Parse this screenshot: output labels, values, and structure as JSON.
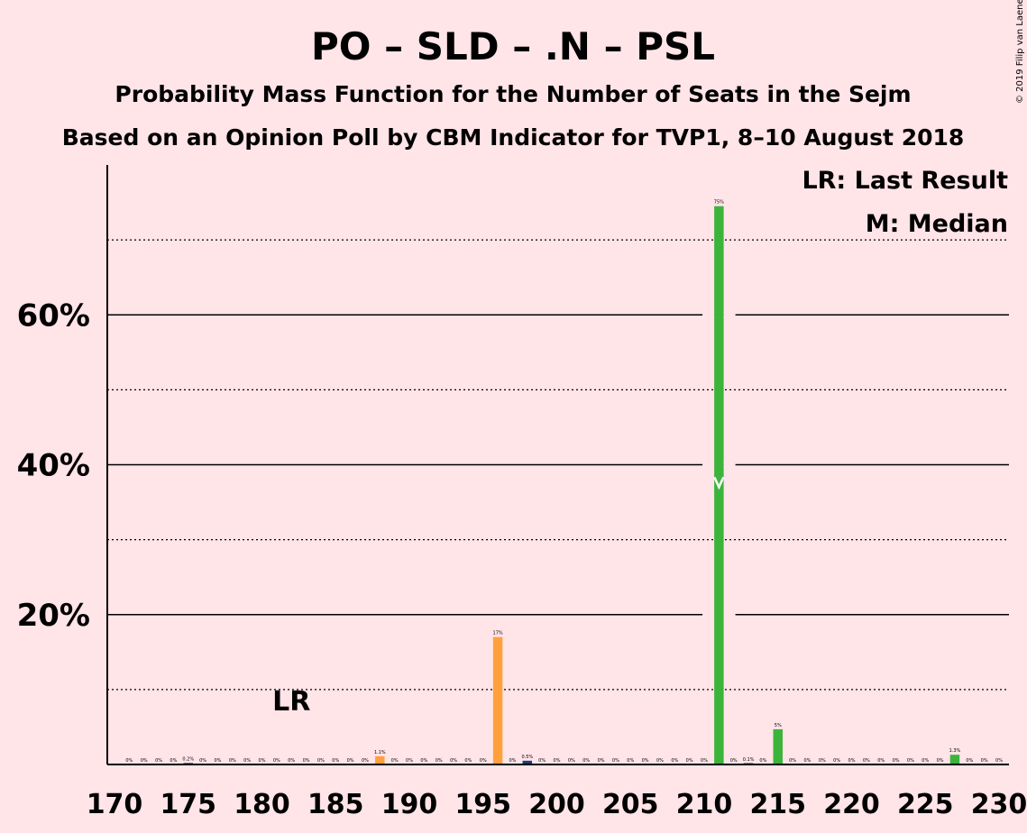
{
  "chart_data": {
    "type": "bar",
    "title": "PO – SLD – .N – PSL",
    "subtitle": "Probability Mass Function for the Number of Seats in the Sejm",
    "subtitle2": "Based on an Opinion Poll by CBM Indicator for TVP1, 8–10 August 2018",
    "copyright": "© 2019 Filip van Laenen",
    "legend": {
      "lr": "LR: Last Result",
      "m": "M: Median",
      "placement": "top-right"
    },
    "lr_marker": {
      "label": "LR",
      "seat": 182
    },
    "median_seat": 211,
    "xlim": [
      170,
      230
    ],
    "ylim": [
      0,
      80
    ],
    "x_ticks": [
      "170",
      "175",
      "180",
      "185",
      "190",
      "195",
      "200",
      "205",
      "210",
      "215",
      "220",
      "225",
      "230"
    ],
    "y_ticks": [
      {
        "value": 20,
        "label": "20%"
      },
      {
        "value": 40,
        "label": "40%"
      },
      {
        "value": 60,
        "label": "60%"
      }
    ],
    "minor_grid": [
      10,
      30,
      50,
      70
    ],
    "colors": {
      "green": "#3cb43c",
      "orange": "#ffa03c",
      "navy": "#1e3c78",
      "background": "#ffe4e8",
      "text": "#1a0a0a"
    },
    "bars": [
      {
        "seat": 171,
        "value": 0,
        "label": "0%"
      },
      {
        "seat": 172,
        "value": 0,
        "label": "0%"
      },
      {
        "seat": 173,
        "value": 0,
        "label": "0%"
      },
      {
        "seat": 174,
        "value": 0,
        "label": "0%"
      },
      {
        "seat": 175,
        "value": 0.2,
        "label": "0.2%"
      },
      {
        "seat": 176,
        "value": 0,
        "label": "0%"
      },
      {
        "seat": 177,
        "value": 0,
        "label": "0%"
      },
      {
        "seat": 178,
        "value": 0,
        "label": "0%"
      },
      {
        "seat": 179,
        "value": 0,
        "label": "0%"
      },
      {
        "seat": 180,
        "value": 0,
        "label": "0%"
      },
      {
        "seat": 181,
        "value": 0,
        "label": "0%"
      },
      {
        "seat": 182,
        "value": 0,
        "label": "0%"
      },
      {
        "seat": 183,
        "value": 0,
        "label": "0%"
      },
      {
        "seat": 184,
        "value": 0,
        "label": "0%"
      },
      {
        "seat": 185,
        "value": 0,
        "label": "0%"
      },
      {
        "seat": 186,
        "value": 0,
        "label": "0%"
      },
      {
        "seat": 187,
        "value": 0,
        "label": "0%"
      },
      {
        "seat": 188,
        "value": 1.1,
        "label": "1.1%",
        "color": "orange"
      },
      {
        "seat": 189,
        "value": 0,
        "label": "0%"
      },
      {
        "seat": 190,
        "value": 0,
        "label": "0%"
      },
      {
        "seat": 191,
        "value": 0,
        "label": "0%"
      },
      {
        "seat": 192,
        "value": 0,
        "label": "0%"
      },
      {
        "seat": 193,
        "value": 0,
        "label": "0%"
      },
      {
        "seat": 194,
        "value": 0,
        "label": "0%"
      },
      {
        "seat": 195,
        "value": 0,
        "label": "0%"
      },
      {
        "seat": 196,
        "value": 17,
        "label": "17%",
        "color": "orange"
      },
      {
        "seat": 197,
        "value": 0,
        "label": "0%"
      },
      {
        "seat": 198,
        "value": 0.5,
        "label": "0.5%",
        "color": "navy"
      },
      {
        "seat": 199,
        "value": 0,
        "label": "0%"
      },
      {
        "seat": 200,
        "value": 0,
        "label": "0%"
      },
      {
        "seat": 201,
        "value": 0,
        "label": "0%"
      },
      {
        "seat": 202,
        "value": 0,
        "label": "0%"
      },
      {
        "seat": 203,
        "value": 0,
        "label": "0%"
      },
      {
        "seat": 204,
        "value": 0,
        "label": "0%"
      },
      {
        "seat": 205,
        "value": 0,
        "label": "0%"
      },
      {
        "seat": 206,
        "value": 0,
        "label": "0%"
      },
      {
        "seat": 207,
        "value": 0,
        "label": "0%"
      },
      {
        "seat": 208,
        "value": 0,
        "label": "0%"
      },
      {
        "seat": 209,
        "value": 0,
        "label": "0%"
      },
      {
        "seat": 210,
        "value": 0,
        "label": "0%"
      },
      {
        "seat": 211,
        "value": 74.5,
        "label": "75%",
        "color": "green"
      },
      {
        "seat": 212,
        "value": 0,
        "label": "0%"
      },
      {
        "seat": 213,
        "value": 0.1,
        "label": "0.1%"
      },
      {
        "seat": 214,
        "value": 0,
        "label": "0%"
      },
      {
        "seat": 215,
        "value": 4.7,
        "label": "5%",
        "color": "green"
      },
      {
        "seat": 216,
        "value": 0,
        "label": "0%"
      },
      {
        "seat": 217,
        "value": 0,
        "label": "0%"
      },
      {
        "seat": 218,
        "value": 0,
        "label": "0%"
      },
      {
        "seat": 219,
        "value": 0,
        "label": "0%"
      },
      {
        "seat": 220,
        "value": 0,
        "label": "0%"
      },
      {
        "seat": 221,
        "value": 0,
        "label": "0%"
      },
      {
        "seat": 222,
        "value": 0,
        "label": "0%"
      },
      {
        "seat": 223,
        "value": 0,
        "label": "0%"
      },
      {
        "seat": 224,
        "value": 0,
        "label": "0%"
      },
      {
        "seat": 225,
        "value": 0,
        "label": "0%"
      },
      {
        "seat": 226,
        "value": 0,
        "label": "0%"
      },
      {
        "seat": 227,
        "value": 1.3,
        "label": "1.3%",
        "color": "green"
      },
      {
        "seat": 228,
        "value": 0,
        "label": "0%"
      },
      {
        "seat": 229,
        "value": 0,
        "label": "0%"
      },
      {
        "seat": 230,
        "value": 0,
        "label": "0%"
      }
    ]
  }
}
